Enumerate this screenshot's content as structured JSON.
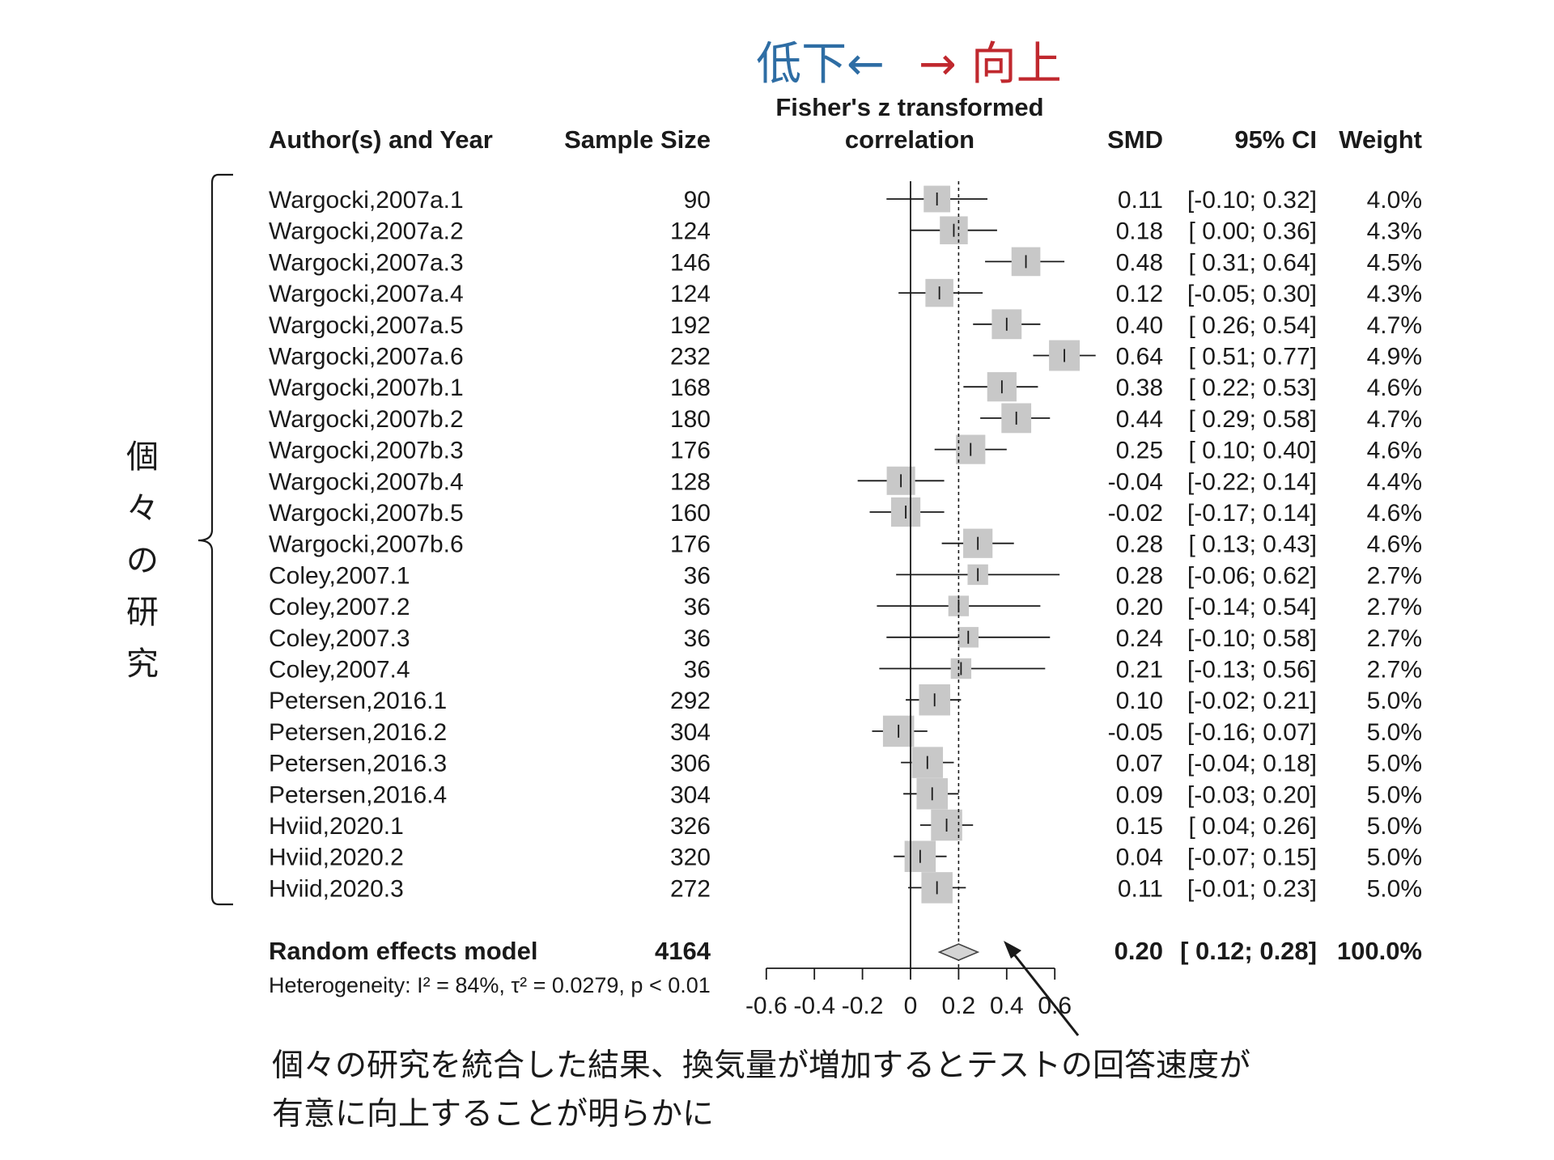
{
  "direction": {
    "left_text": "低下←",
    "right_text": "→ 向上",
    "left_color": "#2e6da4",
    "right_color": "#c0282e"
  },
  "headers": {
    "author": "Author(s) and Year",
    "sample": "Sample Size",
    "plot_line1": "Fisher's z transformed",
    "plot_line2": "correlation",
    "smd": "SMD",
    "ci": "95% CI",
    "weight": "Weight"
  },
  "side_label": [
    "個",
    "々",
    "の",
    "研",
    "究"
  ],
  "summary": {
    "label": "Random effects model",
    "n": "4164",
    "smd": "0.20",
    "ci": "[ 0.12; 0.28]",
    "weight": "100.0%",
    "heterogeneity": "Heterogeneity: I² = 84%, τ² = 0.0279, p < 0.01"
  },
  "caption": {
    "line1": "個々の研究を統合した結果、換気量が増加するとテストの回答速度が",
    "line2": "有意に向上することが明らかに"
  },
  "colors": {
    "box": "#c8c8c8",
    "text": "#1a1a1a",
    "diamond": "#d4d4d4"
  },
  "chart_data": {
    "type": "forest",
    "xlim": [
      -0.6,
      0.6
    ],
    "ticks": [
      -0.6,
      -0.4,
      -0.2,
      0,
      0.2,
      0.4,
      0.6
    ],
    "tick_labels": [
      "-0.6",
      "-0.4",
      "-0.2",
      "0",
      "0.2",
      "0.4",
      "0.6"
    ],
    "reference_line": 0,
    "pooled_line": 0.2,
    "studies": [
      {
        "label": "Wargocki,2007a.1",
        "n": "90",
        "smd": 0.11,
        "lo": -0.1,
        "hi": 0.32,
        "smd_text": "0.11",
        "ci_text": "[-0.10; 0.32]",
        "weight": "4.0%",
        "w": 4.0
      },
      {
        "label": "Wargocki,2007a.2",
        "n": "124",
        "smd": 0.18,
        "lo": 0.0,
        "hi": 0.36,
        "smd_text": "0.18",
        "ci_text": "[ 0.00; 0.36]",
        "weight": "4.3%",
        "w": 4.3
      },
      {
        "label": "Wargocki,2007a.3",
        "n": "146",
        "smd": 0.48,
        "lo": 0.31,
        "hi": 0.64,
        "smd_text": "0.48",
        "ci_text": "[ 0.31; 0.64]",
        "weight": "4.5%",
        "w": 4.5
      },
      {
        "label": "Wargocki,2007a.4",
        "n": "124",
        "smd": 0.12,
        "lo": -0.05,
        "hi": 0.3,
        "smd_text": "0.12",
        "ci_text": "[-0.05; 0.30]",
        "weight": "4.3%",
        "w": 4.3
      },
      {
        "label": "Wargocki,2007a.5",
        "n": "192",
        "smd": 0.4,
        "lo": 0.26,
        "hi": 0.54,
        "smd_text": "0.40",
        "ci_text": "[ 0.26; 0.54]",
        "weight": "4.7%",
        "w": 4.7
      },
      {
        "label": "Wargocki,2007a.6",
        "n": "232",
        "smd": 0.64,
        "lo": 0.51,
        "hi": 0.77,
        "smd_text": "0.64",
        "ci_text": "[ 0.51; 0.77]",
        "weight": "4.9%",
        "w": 4.9
      },
      {
        "label": "Wargocki,2007b.1",
        "n": "168",
        "smd": 0.38,
        "lo": 0.22,
        "hi": 0.53,
        "smd_text": "0.38",
        "ci_text": "[ 0.22; 0.53]",
        "weight": "4.6%",
        "w": 4.6
      },
      {
        "label": "Wargocki,2007b.2",
        "n": "180",
        "smd": 0.44,
        "lo": 0.29,
        "hi": 0.58,
        "smd_text": "0.44",
        "ci_text": "[ 0.29; 0.58]",
        "weight": "4.7%",
        "w": 4.7
      },
      {
        "label": "Wargocki,2007b.3",
        "n": "176",
        "smd": 0.25,
        "lo": 0.1,
        "hi": 0.4,
        "smd_text": "0.25",
        "ci_text": "[ 0.10; 0.40]",
        "weight": "4.6%",
        "w": 4.6
      },
      {
        "label": "Wargocki,2007b.4",
        "n": "128",
        "smd": -0.04,
        "lo": -0.22,
        "hi": 0.14,
        "smd_text": "-0.04",
        "ci_text": "[-0.22; 0.14]",
        "weight": "4.4%",
        "w": 4.4
      },
      {
        "label": "Wargocki,2007b.5",
        "n": "160",
        "smd": -0.02,
        "lo": -0.17,
        "hi": 0.14,
        "smd_text": "-0.02",
        "ci_text": "[-0.17; 0.14]",
        "weight": "4.6%",
        "w": 4.6
      },
      {
        "label": "Wargocki,2007b.6",
        "n": "176",
        "smd": 0.28,
        "lo": 0.13,
        "hi": 0.43,
        "smd_text": "0.28",
        "ci_text": "[ 0.13; 0.43]",
        "weight": "4.6%",
        "w": 4.6
      },
      {
        "label": "Coley,2007.1",
        "n": "36",
        "smd": 0.28,
        "lo": -0.06,
        "hi": 0.62,
        "smd_text": "0.28",
        "ci_text": "[-0.06; 0.62]",
        "weight": "2.7%",
        "w": 2.7
      },
      {
        "label": "Coley,2007.2",
        "n": "36",
        "smd": 0.2,
        "lo": -0.14,
        "hi": 0.54,
        "smd_text": "0.20",
        "ci_text": "[-0.14; 0.54]",
        "weight": "2.7%",
        "w": 2.7
      },
      {
        "label": "Coley,2007.3",
        "n": "36",
        "smd": 0.24,
        "lo": -0.1,
        "hi": 0.58,
        "smd_text": "0.24",
        "ci_text": "[-0.10; 0.58]",
        "weight": "2.7%",
        "w": 2.7
      },
      {
        "label": "Coley,2007.4",
        "n": "36",
        "smd": 0.21,
        "lo": -0.13,
        "hi": 0.56,
        "smd_text": "0.21",
        "ci_text": "[-0.13; 0.56]",
        "weight": "2.7%",
        "w": 2.7
      },
      {
        "label": "Petersen,2016.1",
        "n": "292",
        "smd": 0.1,
        "lo": -0.02,
        "hi": 0.21,
        "smd_text": "0.10",
        "ci_text": "[-0.02; 0.21]",
        "weight": "5.0%",
        "w": 5.0
      },
      {
        "label": "Petersen,2016.2",
        "n": "304",
        "smd": -0.05,
        "lo": -0.16,
        "hi": 0.07,
        "smd_text": "-0.05",
        "ci_text": "[-0.16; 0.07]",
        "weight": "5.0%",
        "w": 5.0
      },
      {
        "label": "Petersen,2016.3",
        "n": "306",
        "smd": 0.07,
        "lo": -0.04,
        "hi": 0.18,
        "smd_text": "0.07",
        "ci_text": "[-0.04; 0.18]",
        "weight": "5.0%",
        "w": 5.0
      },
      {
        "label": "Petersen,2016.4",
        "n": "304",
        "smd": 0.09,
        "lo": -0.03,
        "hi": 0.2,
        "smd_text": "0.09",
        "ci_text": "[-0.03; 0.20]",
        "weight": "5.0%",
        "w": 5.0
      },
      {
        "label": "Hviid,2020.1",
        "n": "326",
        "smd": 0.15,
        "lo": 0.04,
        "hi": 0.26,
        "smd_text": "0.15",
        "ci_text": "[ 0.04; 0.26]",
        "weight": "5.0%",
        "w": 5.0
      },
      {
        "label": "Hviid,2020.2",
        "n": "320",
        "smd": 0.04,
        "lo": -0.07,
        "hi": 0.15,
        "smd_text": "0.04",
        "ci_text": "[-0.07; 0.15]",
        "weight": "5.0%",
        "w": 5.0
      },
      {
        "label": "Hviid,2020.3",
        "n": "272",
        "smd": 0.11,
        "lo": -0.01,
        "hi": 0.23,
        "smd_text": "0.11",
        "ci_text": "[-0.01; 0.23]",
        "weight": "5.0%",
        "w": 5.0
      }
    ],
    "pooled": {
      "smd": 0.2,
      "lo": 0.12,
      "hi": 0.28
    }
  }
}
